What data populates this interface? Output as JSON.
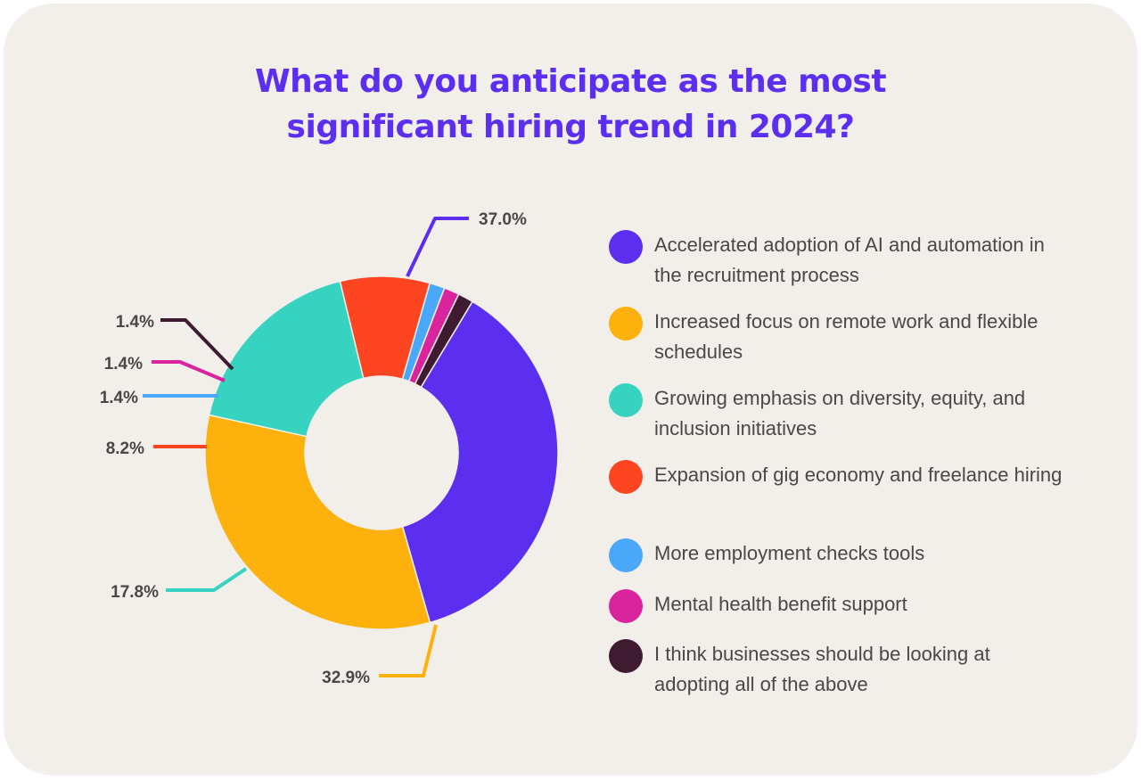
{
  "title_lines": [
    "What do you anticipate as the most",
    "significant hiring trend in 2024?"
  ],
  "chart_data": {
    "type": "pie",
    "title": "What do you anticipate as the most significant hiring trend in 2024?",
    "style": "donut",
    "slices": [
      {
        "label": "Accelerated adoption of AI and automation in the recruitment process",
        "value": 37.0,
        "value_label": "37.0%",
        "color": "#5b2ef0"
      },
      {
        "label": "Increased focus on remote work and flexible schedules",
        "value": 32.9,
        "value_label": "32.9%",
        "color": "#fdb10c"
      },
      {
        "label": "Growing emphasis on diversity, equity, and inclusion initiatives",
        "value": 17.8,
        "value_label": "17.8%",
        "color": "#35d3c0"
      },
      {
        "label": "Expansion of gig economy and freelance hiring",
        "value": 8.2,
        "value_label": "8.2%",
        "color": "#fd4522"
      },
      {
        "label": "More employment checks tools",
        "value": 1.4,
        "value_label": "1.4%",
        "color": "#4aa8fb"
      },
      {
        "label": "Mental health benefit support",
        "value": 1.4,
        "value_label": "1.4%",
        "color": "#d9249e"
      },
      {
        "label": "I think businesses should be looking at adopting all of the above",
        "value": 1.4,
        "value_label": "1.4%",
        "color": "#3f1b32"
      }
    ],
    "legend_position": "right"
  }
}
